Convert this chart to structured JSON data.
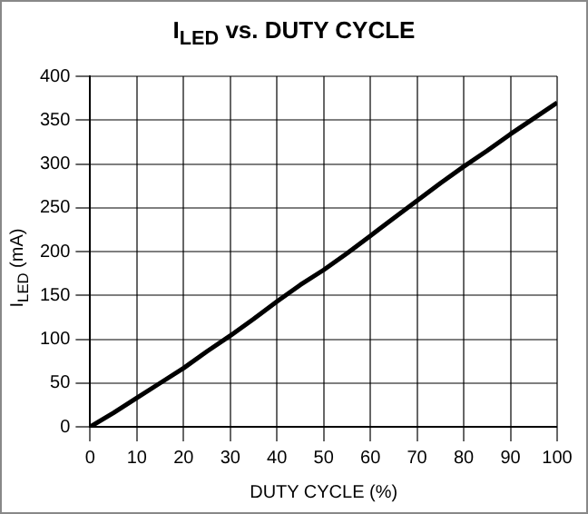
{
  "chart_data": {
    "type": "line",
    "title": "I$_{LED}$ vs. DUTY CYCLE",
    "xlabel": "DUTY CYCLE (%)",
    "ylabel": "I$_{LED}$ (mA)",
    "x": [
      0,
      5,
      10,
      15,
      20,
      25,
      30,
      35,
      40,
      45,
      50,
      55,
      60,
      65,
      70,
      75,
      80,
      85,
      90,
      95,
      100
    ],
    "series": [
      {
        "color": "#000000",
        "values": [
          0,
          16,
          33,
          50,
          67,
          86,
          104,
          123,
          143,
          162,
          179,
          198,
          218,
          238,
          258,
          278,
          297,
          315,
          334,
          352,
          370
        ]
      }
    ],
    "xlim": [
      0,
      100
    ],
    "xticks": [
      0,
      10,
      20,
      30,
      40,
      50,
      60,
      70,
      80,
      90,
      100
    ],
    "ylim": [
      0,
      400
    ],
    "yticks": [
      0,
      50,
      100,
      150,
      200,
      250,
      300,
      350,
      400
    ],
    "grid": true,
    "marker": "none",
    "line_style": "solid"
  }
}
